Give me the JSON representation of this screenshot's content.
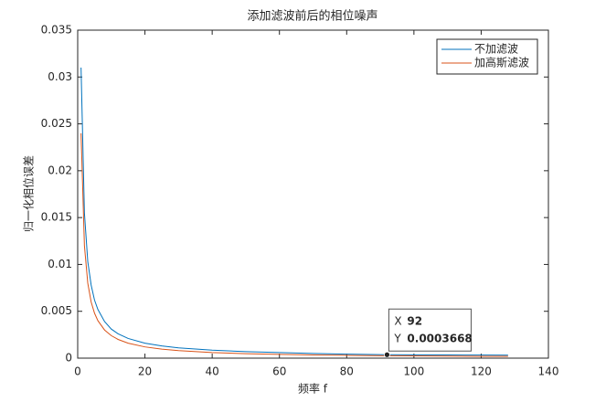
{
  "chart_data": {
    "type": "line",
    "title": "添加滤波前后的相位噪声",
    "x_label": "频率 f",
    "y_label": "归一化相位误差",
    "x": [
      1,
      2,
      3,
      4,
      5,
      6,
      8,
      10,
      12,
      15,
      20,
      25,
      30,
      40,
      50,
      60,
      70,
      80,
      92,
      100,
      110,
      120,
      128
    ],
    "series": [
      {
        "name": "不加滤波",
        "color": "#0072bd",
        "values": [
          0.031,
          0.0155,
          0.0103,
          0.0078,
          0.0062,
          0.0052,
          0.0039,
          0.0031,
          0.0026,
          0.0021,
          0.0016,
          0.0013,
          0.0011,
          0.00085,
          0.0007,
          0.0006,
          0.0005,
          0.00043,
          0.0003668,
          0.00035,
          0.00034,
          0.00033,
          0.00032
        ]
      },
      {
        "name": "加高斯滤波",
        "color": "#d95319",
        "values": [
          0.024,
          0.012,
          0.008,
          0.006,
          0.0048,
          0.004,
          0.003,
          0.0024,
          0.002,
          0.0016,
          0.0012,
          0.00096,
          0.0008,
          0.0006,
          0.00048,
          0.0004,
          0.00034,
          0.0003,
          0.00026,
          0.00024,
          0.00022,
          0.0002,
          0.00019
        ]
      }
    ],
    "xlim": [
      0,
      140
    ],
    "xticks": [
      0,
      20,
      40,
      60,
      80,
      100,
      120,
      140
    ],
    "ylim": [
      0,
      0.035
    ],
    "yticks": [
      0,
      0.005,
      0.01,
      0.015,
      0.02,
      0.025,
      0.03,
      0.035
    ],
    "grid": false,
    "legend_position": "northeast",
    "data_tip": {
      "x_label": "X",
      "x": 92,
      "y_label": "Y",
      "y": 0.0003668
    }
  }
}
